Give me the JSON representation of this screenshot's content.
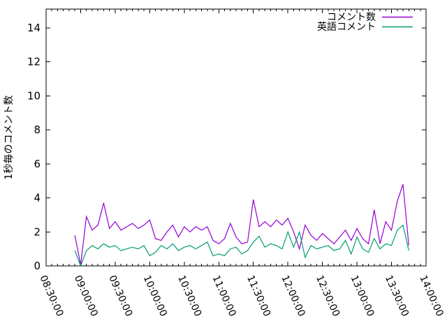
{
  "chart_data": {
    "type": "line",
    "title": "",
    "xlabel": "",
    "ylabel": "1秒毎のコメント数",
    "grid": false,
    "legend_position": "top-right-inside",
    "x_range": [
      "08:30:00",
      "14:00:00"
    ],
    "y_range": [
      0,
      15.1
    ],
    "y_ticks": [
      0,
      2,
      4,
      6,
      8,
      10,
      12,
      14
    ],
    "x_tick_labels": [
      "08:30:00",
      "09:00:00",
      "09:30:00",
      "10:00:00",
      "10:30:00",
      "11:00:00",
      "11:30:00",
      "12:00:00",
      "12:30:00",
      "13:00:00",
      "13:30:00",
      "14:00:00"
    ],
    "x_minor_tick_interval_minutes": 5,
    "x": [
      "08:55",
      "09:00",
      "09:05",
      "09:10",
      "09:15",
      "09:20",
      "09:25",
      "09:30",
      "09:35",
      "09:40",
      "09:45",
      "09:50",
      "09:55",
      "10:00",
      "10:05",
      "10:10",
      "10:15",
      "10:20",
      "10:25",
      "10:30",
      "10:35",
      "10:40",
      "10:45",
      "10:50",
      "10:55",
      "11:00",
      "11:05",
      "11:10",
      "11:15",
      "11:20",
      "11:25",
      "11:30",
      "11:35",
      "11:40",
      "11:45",
      "11:50",
      "11:55",
      "12:00",
      "12:05",
      "12:10",
      "12:15",
      "12:20",
      "12:25",
      "12:30",
      "12:35",
      "12:40",
      "12:45",
      "12:50",
      "12:55",
      "13:00",
      "13:05",
      "13:10",
      "13:15",
      "13:20",
      "13:25",
      "13:30",
      "13:35",
      "13:40",
      "13:45"
    ],
    "series": [
      {
        "name": "コメント数",
        "color": "#9400d3",
        "values": [
          1.8,
          0.05,
          2.9,
          2.1,
          2.4,
          3.7,
          2.2,
          2.6,
          2.1,
          2.3,
          2.5,
          2.2,
          2.4,
          2.7,
          1.6,
          1.5,
          2.0,
          2.4,
          1.7,
          2.3,
          2.0,
          2.3,
          2.1,
          2.3,
          1.5,
          1.3,
          1.6,
          2.5,
          1.7,
          1.3,
          1.4,
          3.9,
          2.3,
          2.6,
          2.3,
          2.7,
          2.4,
          2.8,
          2.0,
          1.0,
          2.4,
          1.8,
          1.5,
          1.9,
          1.6,
          1.3,
          1.7,
          2.1,
          1.5,
          2.2,
          1.6,
          1.3,
          3.3,
          1.3,
          2.6,
          2.1,
          3.8,
          4.8,
          1.2
        ]
      },
      {
        "name": "英語コメント",
        "color": "#009e73",
        "values": [
          0.9,
          0.0,
          0.9,
          1.2,
          1.0,
          1.3,
          1.1,
          1.2,
          0.9,
          1.0,
          1.1,
          1.0,
          1.2,
          0.6,
          0.8,
          1.2,
          1.0,
          1.3,
          0.9,
          1.1,
          1.2,
          1.0,
          1.2,
          1.4,
          0.6,
          0.7,
          0.6,
          1.0,
          1.1,
          0.7,
          0.9,
          1.4,
          1.75,
          1.1,
          1.3,
          1.2,
          1.0,
          2.0,
          1.1,
          2.0,
          0.5,
          1.2,
          1.0,
          1.1,
          1.2,
          0.9,
          1.0,
          1.5,
          0.7,
          1.7,
          1.0,
          0.8,
          1.6,
          1.0,
          1.3,
          1.2,
          2.1,
          2.4,
          0.9
        ]
      }
    ]
  }
}
